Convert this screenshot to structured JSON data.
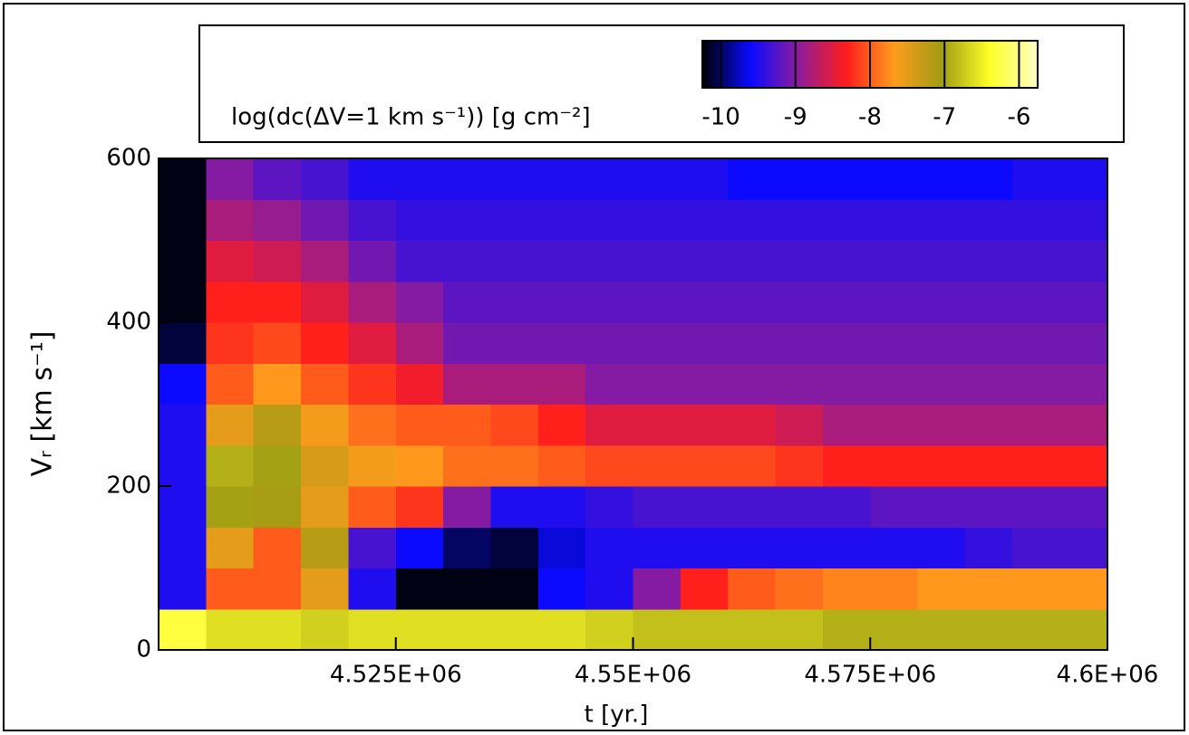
{
  "chart_data": {
    "type": "heatmap",
    "xlabel": "t [yr.]",
    "ylabel": "Vᵣ [km s⁻¹]",
    "colorbar_label": "log(dc(ΔV=1 km s⁻¹)) [g cm⁻²]",
    "xlim": [
      4500000,
      4600000
    ],
    "xticks": [
      {
        "value": 4525000,
        "label": "4.525E+06"
      },
      {
        "value": 4550000,
        "label": "4.55E+06"
      },
      {
        "value": 4575000,
        "label": "4.575E+06"
      },
      {
        "value": 4600000,
        "label": "4.6E+06"
      }
    ],
    "ylim": [
      0,
      600
    ],
    "yticks": [
      0,
      200,
      400,
      600
    ],
    "clim": [
      -10.25,
      -5.75
    ],
    "cticks": [
      {
        "value": -10,
        "label": "-10"
      },
      {
        "value": -9,
        "label": "-9"
      },
      {
        "value": -8,
        "label": "-8"
      },
      {
        "value": -7,
        "label": "-7"
      },
      {
        "value": -6,
        "label": "-6"
      }
    ],
    "colorscale": [
      "#000000",
      "#0a0aff",
      "#8c1c9c",
      "#ff1c1c",
      "#ff9c1c",
      "#a09c14",
      "#ffff28",
      "#ffffc8"
    ],
    "x": [
      4502500,
      4507500,
      4512500,
      4517500,
      4522500,
      4527500,
      4532500,
      4537500,
      4542500,
      4547500,
      4552500,
      4557500,
      4562500,
      4567500,
      4572500,
      4577500,
      4582500,
      4587500,
      4592500,
      4597500
    ],
    "y": [
      25,
      75,
      125,
      175,
      225,
      275,
      325,
      375,
      425,
      475,
      525,
      575
    ],
    "z": [
      [
        -6.3,
        -6.6,
        -6.6,
        -6.7,
        -6.6,
        -6.6,
        -6.6,
        -6.6,
        -6.6,
        -6.7,
        -6.8,
        -6.8,
        -6.8,
        -6.8,
        -6.9,
        -6.9,
        -6.9,
        -6.9,
        -6.9,
        -6.9
      ],
      [
        -9.5,
        -8,
        -8,
        -7.5,
        -9.5,
        -10.2,
        -10.2,
        -10.2,
        -9.6,
        -9.5,
        -9,
        -8.3,
        -8,
        -7.9,
        -7.8,
        -7.8,
        -7.7,
        -7.7,
        -7.7,
        -7.7
      ],
      [
        -9.5,
        -7.5,
        -8,
        -7.2,
        -9.3,
        -9.6,
        -10,
        -10.1,
        -9.7,
        -9.5,
        -9.5,
        -9.5,
        -9.5,
        -9.5,
        -9.5,
        -9.5,
        -9.5,
        -9.4,
        -9.3,
        -9.3
      ],
      [
        -9.5,
        -7,
        -7.1,
        -7.5,
        -8,
        -8.2,
        -9,
        -9.5,
        -9.5,
        -9.4,
        -9.3,
        -9.3,
        -9.3,
        -9.3,
        -9.3,
        -9.2,
        -9.2,
        -9.2,
        -9.2,
        -9.2
      ],
      [
        -9.5,
        -6.9,
        -7,
        -7.4,
        -7.6,
        -7.7,
        -7.9,
        -7.9,
        -8,
        -8.1,
        -8.1,
        -8.1,
        -8.1,
        -8.2,
        -8.3,
        -8.3,
        -8.3,
        -8.3,
        -8.3,
        -8.3
      ],
      [
        -9.5,
        -7.5,
        -7.2,
        -7.6,
        -7.9,
        -8,
        -8,
        -8.1,
        -8.3,
        -8.5,
        -8.5,
        -8.5,
        -8.5,
        -8.6,
        -8.8,
        -8.8,
        -8.8,
        -8.8,
        -8.8,
        -8.8
      ],
      [
        -9.6,
        -8,
        -7.7,
        -8,
        -8.2,
        -8.4,
        -8.8,
        -8.8,
        -8.8,
        -9,
        -9,
        -9,
        -9,
        -9,
        -9,
        -9,
        -9,
        -9,
        -9,
        -9
      ],
      [
        -10.1,
        -8.2,
        -8.1,
        -8.3,
        -8.5,
        -8.8,
        -9.1,
        -9.1,
        -9.1,
        -9.1,
        -9.1,
        -9.1,
        -9.1,
        -9.1,
        -9.1,
        -9.1,
        -9.1,
        -9.1,
        -9.1,
        -9.1
      ],
      [
        -10.2,
        -8.3,
        -8.3,
        -8.5,
        -8.8,
        -9,
        -9.2,
        -9.2,
        -9.2,
        -9.2,
        -9.2,
        -9.2,
        -9.2,
        -9.2,
        -9.2,
        -9.2,
        -9.2,
        -9.2,
        -9.2,
        -9.2
      ],
      [
        -10.2,
        -8.5,
        -8.6,
        -8.8,
        -9.1,
        -9.3,
        -9.3,
        -9.3,
        -9.3,
        -9.3,
        -9.3,
        -9.3,
        -9.3,
        -9.3,
        -9.3,
        -9.3,
        -9.3,
        -9.3,
        -9.3,
        -9.3
      ],
      [
        -10.2,
        -8.8,
        -8.9,
        -9.1,
        -9.3,
        -9.4,
        -9.4,
        -9.4,
        -9.4,
        -9.4,
        -9.4,
        -9.4,
        -9.4,
        -9.4,
        -9.4,
        -9.4,
        -9.4,
        -9.4,
        -9.4,
        -9.4
      ],
      [
        -10.2,
        -9,
        -9.2,
        -9.3,
        -9.5,
        -9.5,
        -9.5,
        -9.5,
        -9.5,
        -9.5,
        -9.5,
        -9.5,
        -9.6,
        -9.6,
        -9.6,
        -9.6,
        -9.6,
        -9.6,
        -9.5,
        -9.5
      ]
    ]
  }
}
